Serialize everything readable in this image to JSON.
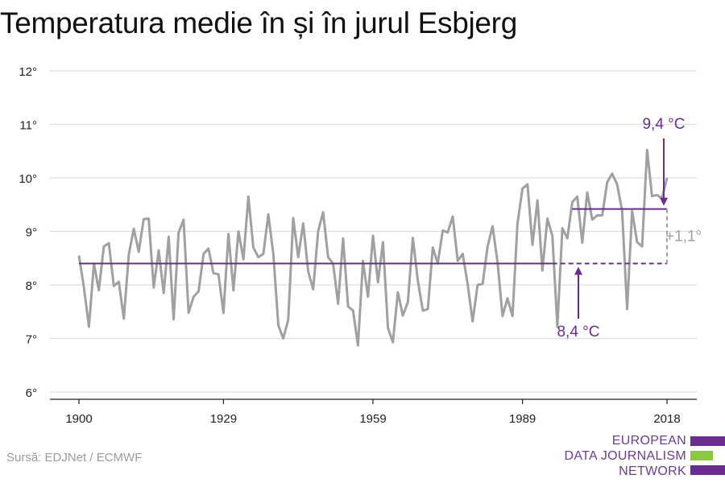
{
  "title": "Temperatura medie în și în jurul Esbjerg",
  "source": "Sursă: EDJNet / ECMWF",
  "logo": {
    "lines": [
      "EUROPEAN",
      "DATA JOURNALISM",
      "NETWORK"
    ],
    "colors": [
      "#6a2c91",
      "#8dc63f",
      "#6a2c91"
    ]
  },
  "colors": {
    "series": "#a0a0a0",
    "accent": "#6a2c91",
    "delta": "#a0a0a0",
    "grid": "#dddddd"
  },
  "chart_data": {
    "type": "line",
    "title": "Temperatura medie în și în jurul Esbjerg",
    "xlabel": "",
    "ylabel": "",
    "ylim": [
      6,
      12
    ],
    "xlim": [
      1900,
      2018
    ],
    "x_ticks": [
      "1900",
      "1929",
      "1959",
      "1989",
      "2018"
    ],
    "y_ticks": [
      "6°",
      "7°",
      "8°",
      "9°",
      "10°",
      "11°",
      "12°"
    ],
    "grid": true,
    "series": [
      {
        "x": [
          1900,
          1901,
          1902,
          1903,
          1904,
          1905,
          1906,
          1907,
          1908,
          1909,
          1910,
          1911,
          1912,
          1913,
          1914,
          1915,
          1916,
          1917,
          1918,
          1919,
          1920,
          1921,
          1922,
          1923,
          1924,
          1925,
          1926,
          1927,
          1928,
          1929,
          1930,
          1931,
          1932,
          1933,
          1934,
          1935,
          1936,
          1937,
          1938,
          1939,
          1940,
          1941,
          1942,
          1943,
          1944,
          1945,
          1946,
          1947,
          1948,
          1949,
          1950,
          1951,
          1952,
          1953,
          1954,
          1955,
          1956,
          1957,
          1958,
          1959,
          1960,
          1961,
          1962,
          1963,
          1964,
          1965,
          1966,
          1967,
          1968,
          1969,
          1970,
          1971,
          1972,
          1973,
          1974,
          1975,
          1976,
          1977,
          1978,
          1979,
          1980,
          1981,
          1982,
          1983,
          1984,
          1985,
          1986,
          1987,
          1988,
          1989,
          1990,
          1991,
          1992,
          1993,
          1994,
          1995,
          1996,
          1997,
          1998,
          1999,
          2000,
          2001,
          2002,
          2003,
          2004,
          2005,
          2006,
          2007,
          2008,
          2009,
          2010,
          2011,
          2012,
          2013,
          2014,
          2015,
          2016,
          2017,
          2018
        ],
        "values": [
          8.55,
          7.95,
          7.22,
          8.4,
          7.9,
          8.72,
          8.78,
          7.98,
          8.06,
          7.37,
          8.57,
          9.05,
          8.62,
          9.23,
          9.24,
          7.95,
          8.65,
          7.85,
          8.9,
          7.36,
          8.98,
          9.22,
          7.48,
          7.78,
          7.88,
          8.58,
          8.68,
          8.22,
          8.2,
          7.48,
          8.95,
          7.9,
          9.0,
          8.48,
          9.65,
          8.7,
          8.52,
          8.58,
          9.32,
          8.58,
          7.25,
          7.0,
          7.35,
          9.25,
          8.52,
          9.15,
          8.25,
          7.92,
          9.0,
          9.36,
          8.52,
          8.4,
          7.65,
          8.87,
          7.6,
          7.52,
          6.87,
          8.45,
          7.78,
          8.92,
          8.05,
          8.8,
          7.2,
          6.93,
          7.86,
          7.43,
          7.68,
          8.88,
          8.08,
          7.52,
          7.55,
          8.7,
          8.4,
          9.02,
          8.98,
          9.28,
          8.45,
          8.58,
          8.02,
          7.32,
          8.0,
          8.02,
          8.72,
          9.1,
          8.42,
          7.42,
          7.75,
          7.42,
          9.15,
          9.8,
          9.88,
          8.75,
          9.58,
          8.27,
          9.24,
          8.92,
          7.22,
          9.06,
          8.87,
          9.55,
          9.65,
          8.79,
          9.73,
          9.22,
          9.3,
          9.3,
          9.92,
          10.08,
          9.88,
          9.38,
          7.55,
          9.38,
          8.8,
          8.72,
          10.52,
          9.66,
          9.68,
          9.62,
          10.0
        ]
      }
    ],
    "annotations": [
      {
        "label": "8,4 °C",
        "value": 8.4,
        "x_range": [
          1900,
          2018
        ],
        "style": "solid-then-dashed",
        "dash_from": 1995
      },
      {
        "label": "9,4 °C",
        "value": 9.42,
        "x_range": [
          1999,
          2018
        ],
        "style": "solid"
      },
      {
        "label": "+1,1°",
        "value_from": 8.4,
        "value_to": 9.42,
        "x": 2018,
        "style": "dashed"
      }
    ]
  }
}
